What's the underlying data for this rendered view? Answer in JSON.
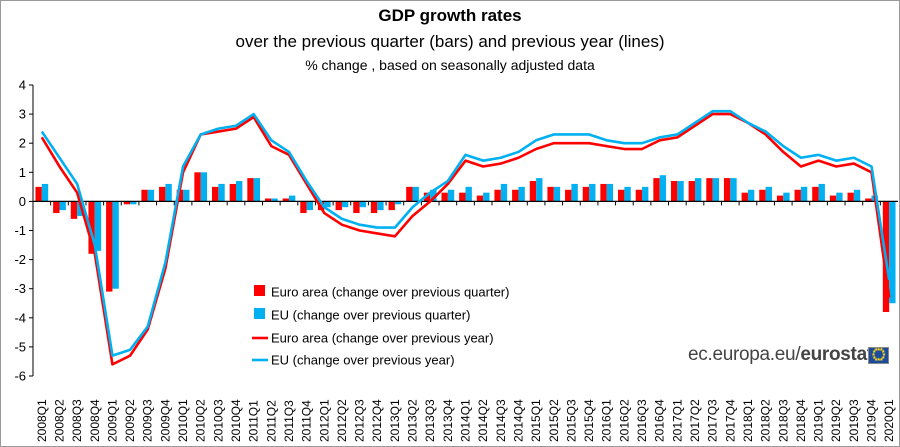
{
  "title": "GDP growth rates",
  "subtitle": "over the previous quarter (bars) and previous year (lines)",
  "subsubtitle": "% change , based on seasonally adjusted data",
  "source": {
    "prefix": "ec.europa.eu/",
    "brand": "eurostat",
    "icon": "eu-flag-icon"
  },
  "colors": {
    "euro_area": "#ff0000",
    "eu": "#00b0f0",
    "axis": "#000000"
  },
  "chart_data": {
    "type": "bar+line",
    "title": "GDP growth rates",
    "subtitle": "over the previous quarter (bars) and previous year (lines)",
    "note": "% change , based on seasonally adjusted data",
    "xlabel": "",
    "ylabel": "",
    "ylim": [
      -6,
      4
    ],
    "yticks": [
      4,
      3,
      2,
      1,
      0,
      -1,
      -2,
      -3,
      -4,
      -5,
      -6
    ],
    "grid": false,
    "legend_position": "bottom-center",
    "categories": [
      "2008Q1",
      "2008Q2",
      "2008Q3",
      "2008Q4",
      "2009Q1",
      "2009Q2",
      "2009Q3",
      "2009Q4",
      "2010Q1",
      "2010Q2",
      "2010Q3",
      "2010Q4",
      "2011Q1",
      "2011Q2",
      "2011Q3",
      "2011Q4",
      "2012Q1",
      "2012Q2",
      "2012Q3",
      "2012Q4",
      "2013Q1",
      "2013Q2",
      "2013Q3",
      "2013Q4",
      "2014Q1",
      "2014Q2",
      "2014Q3",
      "2014Q4",
      "2015Q1",
      "2015Q2",
      "2015Q3",
      "2015Q4",
      "2016Q1",
      "2016Q2",
      "2016Q3",
      "2016Q4",
      "2017Q1",
      "2017Q2",
      "2017Q3",
      "2017Q4",
      "2018Q1",
      "2018Q2",
      "2018Q3",
      "2018Q4",
      "2019Q1",
      "2019Q2",
      "2019Q3",
      "2019Q4",
      "2020Q1"
    ],
    "series": [
      {
        "name": "Euro area (change over previous quarter)",
        "type": "bar",
        "color": "#ff0000",
        "values": [
          0.5,
          -0.4,
          -0.6,
          -1.8,
          -3.1,
          -0.1,
          0.4,
          0.5,
          0.4,
          1.0,
          0.5,
          0.6,
          0.8,
          0.1,
          0.1,
          -0.4,
          -0.3,
          -0.3,
          -0.4,
          -0.4,
          -0.3,
          0.5,
          0.3,
          0.3,
          0.3,
          0.2,
          0.4,
          0.4,
          0.7,
          0.5,
          0.4,
          0.5,
          0.6,
          0.4,
          0.4,
          0.8,
          0.7,
          0.7,
          0.8,
          0.8,
          0.3,
          0.4,
          0.2,
          0.4,
          0.5,
          0.2,
          0.3,
          0.1,
          -3.8
        ]
      },
      {
        "name": "EU (change over previous quarter)",
        "type": "bar",
        "color": "#00b0f0",
        "values": [
          0.6,
          -0.3,
          -0.5,
          -1.7,
          -3.0,
          -0.1,
          0.4,
          0.6,
          0.4,
          1.0,
          0.6,
          0.7,
          0.8,
          0.1,
          0.2,
          -0.3,
          -0.2,
          -0.2,
          -0.2,
          -0.3,
          -0.1,
          0.5,
          0.4,
          0.4,
          0.5,
          0.3,
          0.6,
          0.5,
          0.8,
          0.5,
          0.6,
          0.6,
          0.6,
          0.5,
          0.5,
          0.9,
          0.7,
          0.8,
          0.8,
          0.8,
          0.4,
          0.5,
          0.3,
          0.5,
          0.6,
          0.3,
          0.4,
          0.2,
          -3.5
        ]
      },
      {
        "name": "Euro area (change over previous year)",
        "type": "line",
        "color": "#ff0000",
        "values": [
          2.2,
          1.2,
          0.3,
          -1.8,
          -5.6,
          -5.3,
          -4.4,
          -2.3,
          1.0,
          2.3,
          2.4,
          2.5,
          2.9,
          1.9,
          1.6,
          0.6,
          -0.4,
          -0.8,
          -1.0,
          -1.1,
          -1.2,
          -0.5,
          0.0,
          0.6,
          1.4,
          1.2,
          1.3,
          1.5,
          1.8,
          2.0,
          2.0,
          2.0,
          1.9,
          1.8,
          1.8,
          2.1,
          2.2,
          2.6,
          3.0,
          3.0,
          2.7,
          2.3,
          1.7,
          1.2,
          1.4,
          1.2,
          1.3,
          1.0,
          -3.3
        ]
      },
      {
        "name": "EU (change over previous year)",
        "type": "line",
        "color": "#00b0f0",
        "values": [
          2.4,
          1.5,
          0.6,
          -1.5,
          -5.3,
          -5.1,
          -4.3,
          -2.1,
          1.2,
          2.3,
          2.5,
          2.6,
          3.0,
          2.1,
          1.7,
          0.7,
          -0.2,
          -0.6,
          -0.8,
          -0.9,
          -0.9,
          -0.2,
          0.3,
          0.7,
          1.6,
          1.4,
          1.5,
          1.7,
          2.1,
          2.3,
          2.3,
          2.3,
          2.1,
          2.0,
          2.0,
          2.2,
          2.3,
          2.7,
          3.1,
          3.1,
          2.7,
          2.4,
          1.9,
          1.5,
          1.6,
          1.4,
          1.5,
          1.2,
          -2.7
        ]
      }
    ]
  }
}
